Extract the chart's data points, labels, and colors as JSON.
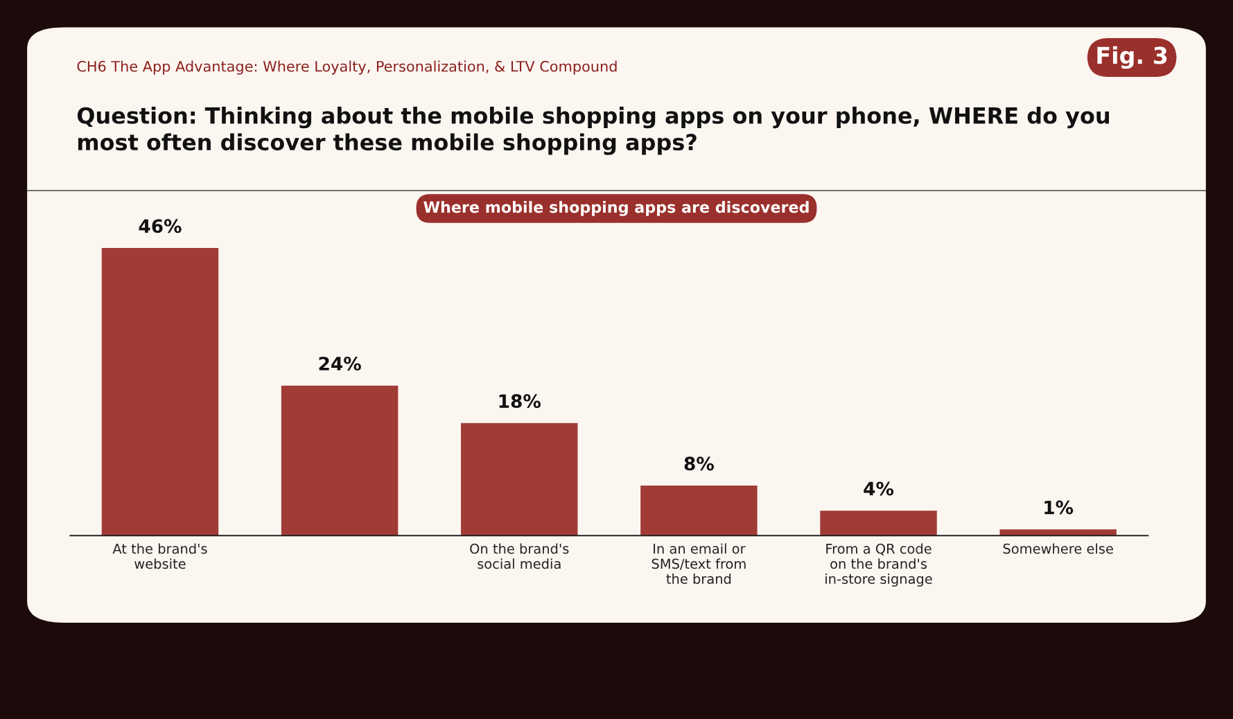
{
  "chart_data": {
    "type": "bar",
    "title": "Question: Thinking about the mobile shopping apps on your phone, WHERE do you\nmost often discover these mobile shopping apps?",
    "subtitle": "CH6 The App Advantage: Where Loyalty, Personalization, & LTV Compound",
    "categories": [
      "At the brand's\nwebsite",
      null,
      "On the brand's\nsocial media",
      "In an email or\nSMS/text from\nthe brand",
      "From a QR code\non the brand's\nin-store signage",
      "Somewhere else"
    ],
    "values": [
      46,
      24,
      18,
      8,
      4,
      1
    ],
    "value_labels": [
      "46%",
      "24%",
      "18%",
      "8%",
      "4%",
      "1%"
    ],
    "color": "#a13b35",
    "grid": false,
    "annotations": [
      "Fig. 3",
      "Where mobile shopping apps are discovered"
    ]
  }
}
